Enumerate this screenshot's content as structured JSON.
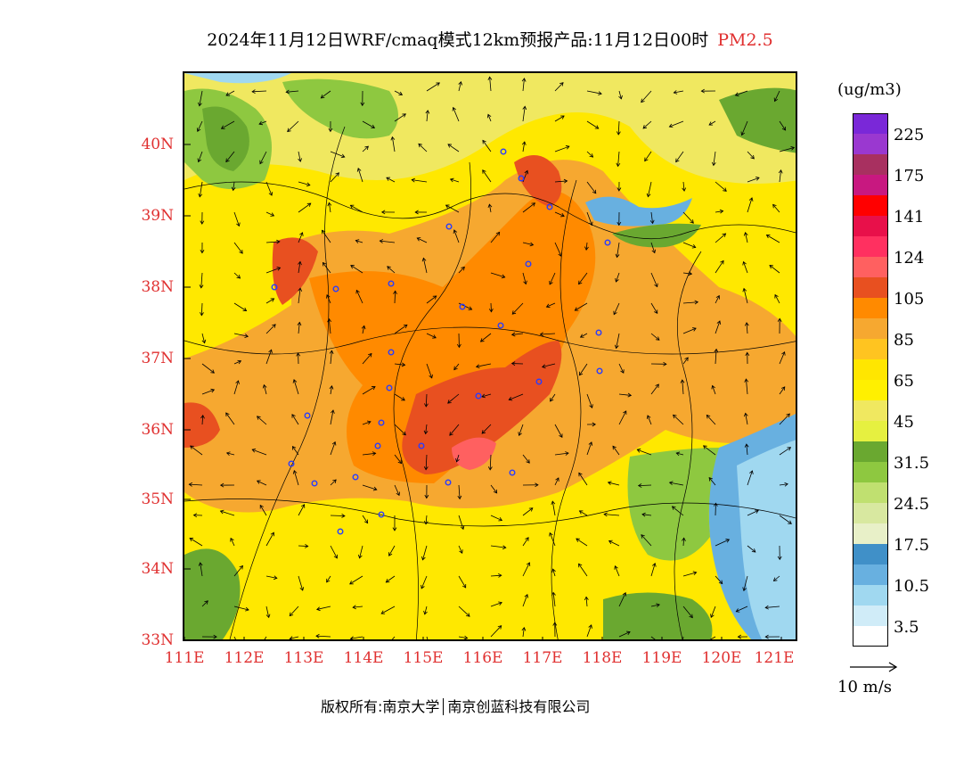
{
  "title": {
    "main": "2024年11月12日WRF/cmaq模式12km预报产品:11月12日00时",
    "pollutant": "PM2.5"
  },
  "axes": {
    "lat_labels": [
      "40N",
      "39N",
      "38N",
      "37N",
      "36N",
      "35N",
      "34N",
      "33N"
    ],
    "lon_labels": [
      "111E",
      "112E",
      "113E",
      "114E",
      "115E",
      "116E",
      "117E",
      "118E",
      "119E",
      "120E",
      "121E"
    ]
  },
  "legend": {
    "unit": "(ug/m3)",
    "labels": [
      "225",
      "175",
      "141",
      "124",
      "105",
      "85",
      "65",
      "45",
      "31.5",
      "24.5",
      "17.5",
      "10.5",
      "3.5"
    ],
    "colors": [
      "#7a28d8",
      "#9a38d0",
      "#a83060",
      "#c81880",
      "#ff0000",
      "#e8104a",
      "#ff3060",
      "#ff6060",
      "#e85020",
      "#ff8a00",
      "#f6a830",
      "#ffc420",
      "#ffe600",
      "#fff000",
      "#f0e860",
      "#e6f040",
      "#6aa830",
      "#8ec840",
      "#c0e070",
      "#d8e8a0",
      "#e8f0c8",
      "#4090c8",
      "#68b0e0",
      "#a0d8f0",
      "#d0ecf8",
      "#ffffff"
    ]
  },
  "wind_reference": {
    "label": "10 m/s"
  },
  "footer": {
    "copyright": "版权所有:南京大学",
    "company": "南京创蓝科技有限公司"
  }
}
